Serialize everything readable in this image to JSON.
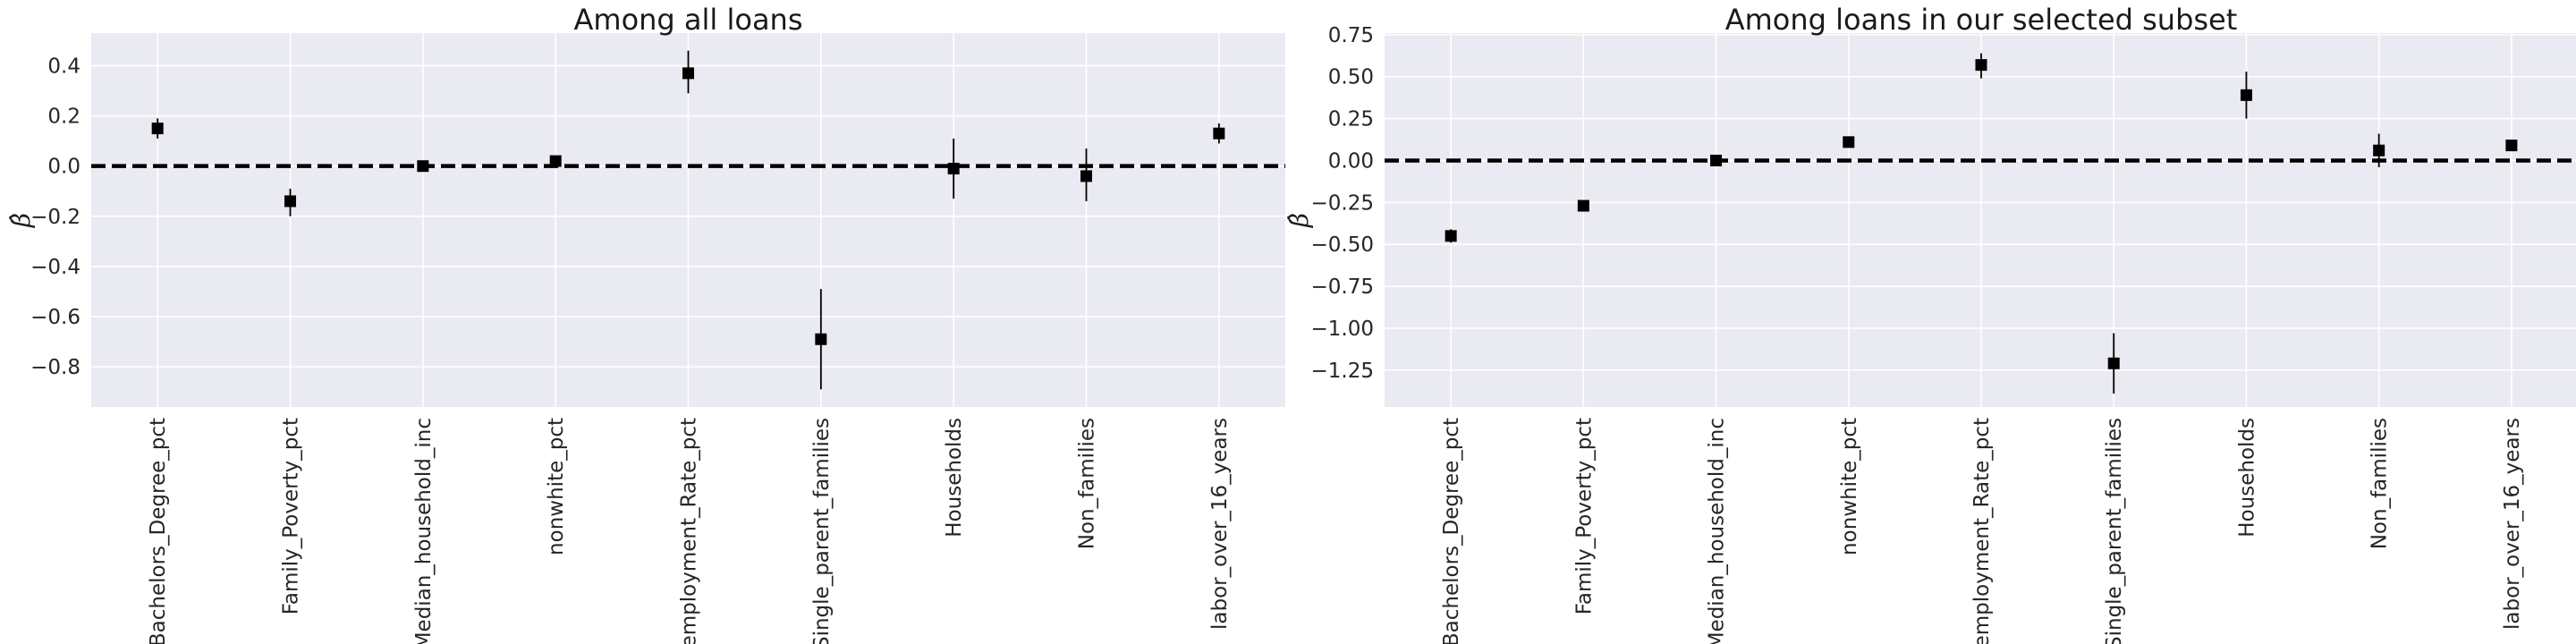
{
  "chart_data": [
    {
      "type": "scatter",
      "title": "Among all loans",
      "ylabel": "β̂",
      "xlabel": "",
      "categories": [
        "Bachelors_Degree_pct",
        "Family_Poverty_pct",
        "Median_household_inc",
        "nonwhite_pct",
        "Unemployment_Rate_pct",
        "Single_parent_families",
        "Households",
        "Non_families",
        "labor_over_16_years"
      ],
      "values": [
        0.15,
        -0.14,
        0.0,
        0.02,
        0.37,
        -0.69,
        -0.01,
        -0.04,
        0.13
      ],
      "error_low": [
        0.11,
        -0.2,
        -0.005,
        0.005,
        0.29,
        -0.89,
        -0.13,
        -0.14,
        0.09
      ],
      "error_high": [
        0.19,
        -0.09,
        0.005,
        0.035,
        0.46,
        -0.49,
        0.11,
        0.07,
        0.17
      ],
      "ylim": [
        -0.96,
        0.53
      ],
      "yticks": [
        0.4,
        0.2,
        0.0,
        -0.2,
        -0.4,
        -0.6,
        -0.8
      ],
      "ytick_labels": [
        "0.4",
        "0.2",
        "0.0",
        "−0.2",
        "−0.4",
        "−0.6",
        "−0.8"
      ],
      "reference_line": 0.0,
      "grid": true
    },
    {
      "type": "scatter",
      "title": "Among loans in our selected subset",
      "ylabel": "β̂",
      "xlabel": "",
      "categories": [
        "Bachelors_Degree_pct",
        "Family_Poverty_pct",
        "Median_household_inc",
        "nonwhite_pct",
        "Unemployment_Rate_pct",
        "Single_parent_families",
        "Households",
        "Non_families",
        "labor_over_16_years"
      ],
      "values": [
        -0.45,
        -0.27,
        0.0,
        0.11,
        0.57,
        -1.21,
        0.39,
        0.06,
        0.09
      ],
      "error_low": [
        -0.49,
        -0.3,
        -0.005,
        0.09,
        0.49,
        -1.39,
        0.25,
        -0.04,
        0.06
      ],
      "error_high": [
        -0.41,
        -0.24,
        0.005,
        0.13,
        0.64,
        -1.03,
        0.53,
        0.16,
        0.12
      ],
      "ylim": [
        -1.47,
        0.76
      ],
      "yticks": [
        0.75,
        0.5,
        0.25,
        0.0,
        -0.25,
        -0.5,
        -0.75,
        -1.0,
        -1.25
      ],
      "ytick_labels": [
        "0.75",
        "0.50",
        "0.25",
        "0.00",
        "−0.25",
        "−0.50",
        "−0.75",
        "−1.00",
        "−1.25"
      ],
      "reference_line": 0.0,
      "grid": true
    }
  ]
}
